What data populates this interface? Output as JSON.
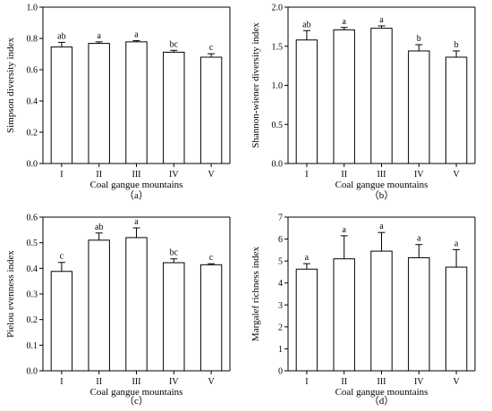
{
  "chart_data": [
    {
      "type": "bar",
      "panel_label": "（a）",
      "xlabel": "Coal gangue mountains",
      "ylabel": "Simpson diversity index",
      "categories": [
        "I",
        "II",
        "III",
        "IV",
        "V"
      ],
      "values": [
        0.745,
        0.768,
        0.778,
        0.712,
        0.68
      ],
      "errors": [
        0.03,
        0.01,
        0.008,
        0.012,
        0.022
      ],
      "significance": [
        "ab",
        "a",
        "a",
        "bc",
        "c"
      ],
      "ylim": [
        0,
        1.0
      ],
      "yticks": [
        "0.0",
        "0.2",
        "0.4",
        "0.6",
        "0.8",
        "1.0"
      ],
      "ytick_values": [
        0,
        0.2,
        0.4,
        0.6,
        0.8,
        1.0
      ]
    },
    {
      "type": "bar",
      "panel_label": "（b）",
      "xlabel": "Coal gangue mountains",
      "ylabel": "Shannon-wiener diversity index",
      "categories": [
        "I",
        "II",
        "III",
        "IV",
        "V"
      ],
      "values": [
        1.58,
        1.71,
        1.73,
        1.44,
        1.36
      ],
      "errors": [
        0.12,
        0.03,
        0.03,
        0.08,
        0.08
      ],
      "significance": [
        "ab",
        "a",
        "a",
        "b",
        "b"
      ],
      "ylim": [
        0,
        2.0
      ],
      "yticks": [
        "0.0",
        "0.5",
        "1.0",
        "1.5",
        "2.0"
      ],
      "ytick_values": [
        0,
        0.5,
        1.0,
        1.5,
        2.0
      ]
    },
    {
      "type": "bar",
      "panel_label": "（c）",
      "xlabel": "Coal gangue mountains",
      "ylabel": "Pielou evenness index",
      "categories": [
        "I",
        "II",
        "III",
        "IV",
        "V"
      ],
      "values": [
        0.388,
        0.51,
        0.52,
        0.422,
        0.414
      ],
      "errors": [
        0.035,
        0.028,
        0.038,
        0.015,
        0.004
      ],
      "significance": [
        "c",
        "ab",
        "a",
        "bc",
        "c"
      ],
      "ylim": [
        0,
        0.6
      ],
      "yticks": [
        "0.0",
        "0.1",
        "0.2",
        "0.3",
        "0.4",
        "0.5",
        "0.6"
      ],
      "ytick_values": [
        0,
        0.1,
        0.2,
        0.3,
        0.4,
        0.5,
        0.6
      ]
    },
    {
      "type": "bar",
      "panel_label": "（d）",
      "xlabel": "Coal gangue mountains",
      "ylabel": "Margalef  richness index",
      "categories": [
        "I",
        "II",
        "III",
        "IV",
        "V"
      ],
      "values": [
        4.63,
        5.1,
        5.45,
        5.15,
        4.72
      ],
      "errors": [
        0.25,
        1.05,
        0.85,
        0.6,
        0.8
      ],
      "significance": [
        "a",
        "a",
        "a",
        "a",
        "a"
      ],
      "ylim": [
        0,
        7
      ],
      "yticks": [
        "0",
        "1",
        "2",
        "3",
        "4",
        "5",
        "6",
        "7"
      ],
      "ytick_values": [
        0,
        1,
        2,
        3,
        4,
        5,
        6,
        7
      ]
    }
  ]
}
